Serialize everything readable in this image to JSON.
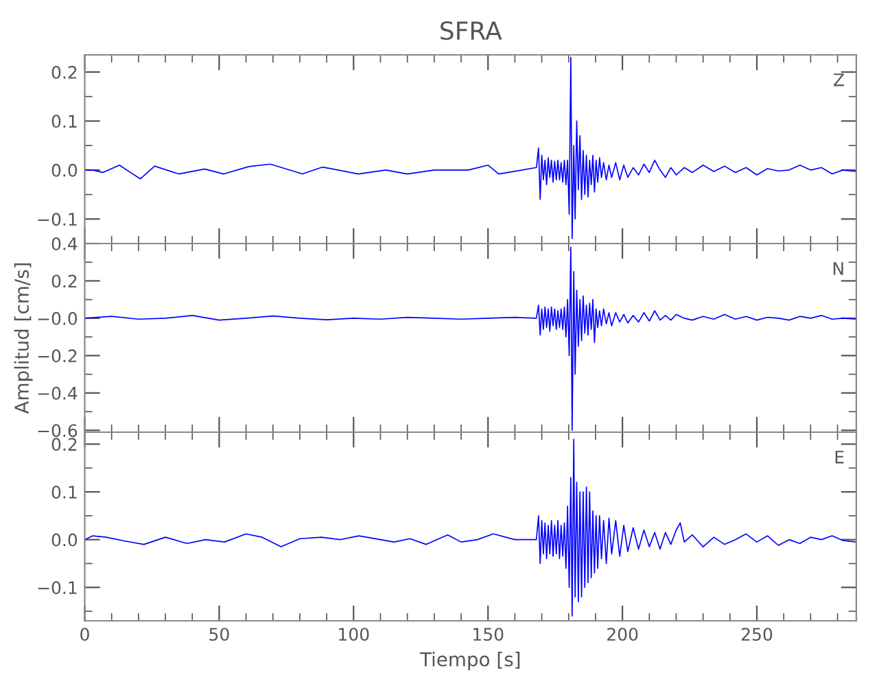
{
  "chart_data": [
    {
      "type": "line",
      "title": "SFRA",
      "annotations": [
        "Z"
      ],
      "tick_labels": "y",
      "xlim": [
        0,
        287
      ],
      "xticks": [
        0,
        50,
        100,
        150,
        200,
        250
      ],
      "ylim": [
        -0.15,
        0.235
      ],
      "yticks": [
        {
          "value": -0.1,
          "label": "−0.1"
        },
        {
          "value": 0.0,
          "label": "0.0"
        },
        {
          "value": 0.1,
          "label": "0.1"
        },
        {
          "value": 0.2,
          "label": "0.2"
        }
      ],
      "x": [
        0,
        3,
        6.7,
        12.9,
        17,
        20.7,
        26,
        35,
        44.6,
        51.7,
        61,
        69,
        81,
        88.5,
        101.8,
        112,
        120,
        130,
        142.7,
        150,
        154,
        168,
        168.8,
        169.4,
        170,
        170.6,
        171.2,
        171.8,
        172.4,
        173,
        173.6,
        174.2,
        174.8,
        175.4,
        176,
        176.6,
        177.2,
        177.8,
        178.4,
        179,
        179.6,
        180.2,
        180.8,
        181.3,
        181.9,
        182.4,
        183,
        183.6,
        184.2,
        184.8,
        185.4,
        186,
        186.6,
        187.2,
        187.8,
        188.4,
        189,
        189.6,
        190.2,
        190.8,
        191.5,
        192.2,
        193,
        194,
        195,
        196,
        197.5,
        199,
        200.5,
        202,
        204,
        206,
        208,
        210,
        212,
        214,
        216,
        218,
        220,
        223,
        226,
        230,
        234,
        238,
        242,
        246,
        250,
        254,
        258,
        262,
        266,
        270,
        274,
        278,
        282,
        287
      ],
      "series": [
        {
          "color": "#0000ff",
          "values": [
            0.0,
            0.0,
            -0.005,
            0.01,
            -0.005,
            -0.018,
            0.008,
            -0.008,
            0.002,
            -0.008,
            0.007,
            0.012,
            -0.008,
            0.006,
            -0.008,
            0.0,
            -0.008,
            0.0,
            0.0,
            0.01,
            -0.008,
            0.005,
            0.045,
            -0.06,
            0.03,
            -0.02,
            0.02,
            -0.03,
            0.025,
            -0.015,
            0.02,
            -0.025,
            0.018,
            -0.02,
            0.02,
            -0.02,
            0.015,
            -0.025,
            0.02,
            -0.03,
            0.02,
            -0.09,
            0.23,
            -0.14,
            0.05,
            -0.1,
            0.1,
            -0.04,
            0.07,
            -0.06,
            0.04,
            -0.05,
            0.03,
            -0.055,
            0.02,
            -0.03,
            0.03,
            -0.045,
            0.02,
            -0.025,
            0.025,
            -0.015,
            0.015,
            -0.02,
            0.01,
            -0.015,
            0.015,
            -0.02,
            0.01,
            -0.015,
            0.005,
            -0.01,
            0.012,
            -0.005,
            0.02,
            0.0,
            -0.015,
            0.005,
            -0.01,
            0.005,
            -0.005,
            0.01,
            -0.003,
            0.008,
            -0.005,
            0.005,
            -0.01,
            0.003,
            -0.002,
            0.0,
            0.01,
            0.0,
            0.005,
            -0.008,
            0.0,
            -0.003
          ]
        }
      ]
    },
    {
      "type": "line",
      "ylabel": "Amplitud [cm/s]",
      "annotations": [
        "N"
      ],
      "tick_labels": "y",
      "xlim": [
        0,
        287
      ],
      "xticks": [
        0,
        50,
        100,
        150,
        200,
        250
      ],
      "ylim": [
        -0.61,
        0.4
      ],
      "yticks": [
        {
          "value": -0.6,
          "label": "−0.6"
        },
        {
          "value": -0.4,
          "label": "−0.4"
        },
        {
          "value": -0.2,
          "label": "−0.2"
        },
        {
          "value": 0.0,
          "label": "−0.0"
        },
        {
          "value": 0.2,
          "label": "0.2"
        },
        {
          "value": 0.4,
          "label": "0.4"
        }
      ],
      "x": [
        0,
        10,
        20,
        30,
        40,
        50,
        60,
        70,
        80,
        90,
        100,
        110,
        120,
        130,
        140,
        150,
        160,
        168,
        168.8,
        169.4,
        170,
        170.6,
        171.2,
        171.8,
        172.4,
        173,
        173.6,
        174.2,
        174.8,
        175.4,
        176,
        176.6,
        177.2,
        177.8,
        178.4,
        179,
        179.6,
        180.2,
        180.8,
        181.3,
        181.9,
        182.4,
        183,
        183.6,
        184.2,
        184.8,
        185.4,
        186,
        186.6,
        187.2,
        187.8,
        188.4,
        189,
        189.6,
        190.2,
        190.8,
        191.5,
        192.2,
        193,
        194,
        195,
        196,
        197.5,
        199,
        200.5,
        202,
        204,
        206,
        208,
        210,
        212,
        214,
        216,
        218,
        220,
        223,
        226,
        230,
        234,
        238,
        242,
        246,
        250,
        254,
        258,
        262,
        266,
        270,
        274,
        278,
        282,
        287
      ],
      "series": [
        {
          "color": "#0000ff",
          "values": [
            0.0,
            0.01,
            -0.005,
            0.0,
            0.015,
            -0.01,
            0.0,
            0.012,
            0.0,
            -0.008,
            0.0,
            -0.005,
            0.005,
            0.0,
            -0.005,
            0.0,
            0.005,
            0.0,
            0.07,
            -0.09,
            0.05,
            -0.06,
            0.06,
            -0.05,
            0.05,
            -0.07,
            0.06,
            -0.04,
            0.05,
            -0.06,
            0.04,
            -0.05,
            0.05,
            -0.06,
            0.06,
            -0.1,
            0.1,
            -0.2,
            0.38,
            -0.6,
            0.25,
            -0.3,
            0.15,
            -0.15,
            0.1,
            -0.12,
            0.12,
            -0.08,
            0.07,
            -0.09,
            0.08,
            -0.06,
            0.1,
            -0.13,
            0.05,
            -0.05,
            0.04,
            -0.04,
            0.05,
            -0.03,
            0.03,
            -0.04,
            0.03,
            -0.02,
            0.02,
            -0.025,
            0.015,
            -0.02,
            0.03,
            -0.015,
            0.04,
            -0.01,
            0.015,
            -0.01,
            0.02,
            0.0,
            -0.01,
            0.01,
            -0.005,
            0.02,
            -0.005,
            0.01,
            -0.01,
            0.005,
            0.0,
            -0.01,
            0.01,
            0.0,
            0.015,
            -0.005,
            0.0,
            -0.005
          ]
        }
      ]
    },
    {
      "type": "line",
      "xlabel": "Tiempo [s]",
      "annotations": [
        "E"
      ],
      "xlim": [
        0,
        287
      ],
      "xticks": [
        0,
        50,
        100,
        150,
        200,
        250
      ],
      "ylim": [
        -0.17,
        0.225
      ],
      "yticks": [
        {
          "value": -0.1,
          "label": "−0.1"
        },
        {
          "value": 0.0,
          "label": "0.0"
        },
        {
          "value": 0.1,
          "label": "0.1"
        },
        {
          "value": 0.2,
          "label": "0.2"
        }
      ],
      "x": [
        0,
        3,
        8,
        15,
        22,
        30,
        38,
        45,
        52,
        60,
        66,
        73,
        80,
        88,
        95,
        102,
        110,
        115,
        121,
        127,
        135,
        140,
        146,
        152,
        160,
        168,
        168.8,
        169.4,
        170,
        170.6,
        171.2,
        171.8,
        172.4,
        173,
        173.6,
        174.2,
        174.8,
        175.4,
        176,
        176.6,
        177.2,
        177.8,
        178.4,
        179,
        179.6,
        180.2,
        180.8,
        181.3,
        181.9,
        182.4,
        183,
        183.6,
        184.2,
        184.8,
        185.4,
        186,
        186.6,
        187.2,
        187.8,
        188.4,
        189,
        189.6,
        190.2,
        190.8,
        191.5,
        192.2,
        193,
        194,
        195,
        196,
        197.5,
        199,
        200.5,
        202,
        204,
        206,
        208,
        210,
        212,
        214,
        216,
        218,
        220,
        221.5,
        223,
        226,
        230,
        234,
        238,
        242,
        246,
        250,
        254,
        258,
        262,
        266,
        270,
        274,
        278,
        282,
        287
      ],
      "series": [
        {
          "color": "#0000ff",
          "values": [
            0.0,
            0.008,
            0.005,
            -0.003,
            -0.01,
            0.005,
            -0.008,
            0.0,
            -0.005,
            0.012,
            0.005,
            -0.015,
            0.002,
            0.005,
            0.0,
            0.008,
            0.0,
            -0.005,
            0.002,
            -0.01,
            0.01,
            -0.005,
            0.0,
            0.012,
            0.0,
            0.0,
            0.05,
            -0.05,
            0.04,
            -0.03,
            0.035,
            -0.04,
            0.03,
            -0.03,
            0.04,
            -0.035,
            0.03,
            -0.03,
            0.04,
            -0.04,
            0.03,
            -0.035,
            0.035,
            -0.06,
            0.07,
            -0.1,
            0.13,
            -0.16,
            0.21,
            -0.12,
            0.12,
            -0.13,
            0.1,
            -0.12,
            0.1,
            -0.1,
            0.11,
            -0.09,
            0.1,
            -0.08,
            0.06,
            -0.07,
            0.05,
            -0.06,
            0.05,
            -0.04,
            0.04,
            -0.05,
            0.045,
            -0.03,
            0.04,
            -0.035,
            0.03,
            -0.025,
            0.025,
            -0.02,
            0.02,
            -0.015,
            0.015,
            -0.02,
            0.015,
            -0.01,
            0.02,
            0.035,
            -0.005,
            0.01,
            -0.015,
            0.005,
            -0.01,
            0.0,
            0.012,
            -0.005,
            0.008,
            -0.012,
            0.0,
            -0.008,
            0.005,
            0.0,
            0.008,
            -0.002,
            -0.005
          ]
        }
      ]
    }
  ]
}
